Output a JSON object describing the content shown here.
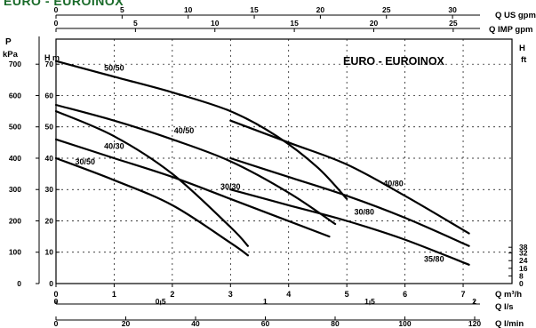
{
  "header": {
    "title": "EURO - EUROINOX"
  },
  "chart_data": {
    "type": "line",
    "title": "EURO - EUROINOX",
    "axes": {
      "top_us_gpm": {
        "label": "Q US gpm",
        "ticks": [
          "0",
          "5",
          "10",
          "15",
          "20",
          "25",
          "30"
        ],
        "range": [
          0,
          34.5
        ]
      },
      "top_imp_gpm": {
        "label": "Q IMP gpm",
        "ticks": [
          "0",
          "5",
          "10",
          "15",
          "20",
          "25"
        ],
        "range": [
          0,
          28.7
        ]
      },
      "left_kpa": {
        "label_top": "P",
        "label_bottom": "kPa",
        "ticks": [
          "0",
          "100",
          "200",
          "300",
          "400",
          "500",
          "600",
          "700"
        ],
        "range": [
          0,
          780
        ]
      },
      "left_m": {
        "label": "H m",
        "unit": "m",
        "ticks": [
          "0",
          "10",
          "20",
          "30",
          "40",
          "50",
          "60",
          "70"
        ],
        "range": [
          0,
          78
        ]
      },
      "right_ft": {
        "label_top": "H",
        "label_bottom": "ft",
        "ticks": [
          "0",
          "8",
          "16",
          "24",
          "32",
          "38"
        ],
        "range": [
          0,
          256
        ]
      },
      "bottom_m3h": {
        "label": "Q m³/h",
        "ticks": [
          "0",
          "1",
          "2",
          "3",
          "4",
          "5",
          "6",
          "7"
        ],
        "range": [
          0,
          7.84
        ]
      },
      "bottom_ls": {
        "label": "Q l/s",
        "ticks": [
          "0",
          "0,5",
          "1",
          "1,5",
          "2"
        ],
        "range": [
          0,
          2.18
        ]
      },
      "bottom_lmin": {
        "label": "Q l/min",
        "ticks": [
          "0",
          "20",
          "40",
          "60",
          "80",
          "100",
          "120"
        ],
        "range": [
          0,
          130.7
        ]
      }
    },
    "x_unit": "m³/h",
    "y_unit": "m",
    "series": [
      {
        "name": "50/50",
        "label_at": [
          1.0,
          68
        ],
        "x": [
          0,
          1,
          2,
          3,
          3.8,
          4.5,
          5.0
        ],
        "y": [
          71,
          66,
          61,
          55,
          47,
          37,
          27
        ]
      },
      {
        "name": "40/50",
        "label_at": [
          2.2,
          48
        ],
        "x": [
          0,
          1,
          2,
          3,
          4,
          4.8
        ],
        "y": [
          57,
          52,
          46,
          39,
          29,
          19
        ]
      },
      {
        "name": "40/30",
        "label_at": [
          1.0,
          43
        ],
        "x": [
          0,
          1,
          2,
          3,
          3.3
        ],
        "y": [
          55,
          47,
          35,
          18,
          12
        ]
      },
      {
        "name": "30/50",
        "label_at": [
          0.5,
          38
        ],
        "x": [
          0,
          1,
          2,
          3,
          4.7
        ],
        "y": [
          46,
          40,
          34,
          27,
          15
        ]
      },
      {
        "name": "30/30",
        "label_at": [
          3.0,
          30
        ],
        "x": [
          0,
          1,
          2,
          3,
          3.3
        ],
        "y": [
          40,
          33,
          25,
          13,
          9
        ]
      },
      {
        "name": "40/80",
        "label_at": [
          5.8,
          31
        ],
        "x": [
          3.0,
          4,
          5,
          6,
          7.1
        ],
        "y": [
          52,
          45,
          38,
          28,
          16
        ]
      },
      {
        "name": "30/80",
        "label_at": [
          5.3,
          22
        ],
        "x": [
          3.0,
          4,
          5,
          6,
          7.1
        ],
        "y": [
          40,
          34,
          28,
          21,
          12
        ]
      },
      {
        "name": "35/80",
        "label_at": [
          6.5,
          7
        ],
        "x": [
          3.0,
          4,
          5,
          6,
          7.1
        ],
        "y": [
          30,
          25,
          20,
          14,
          6
        ]
      }
    ]
  }
}
